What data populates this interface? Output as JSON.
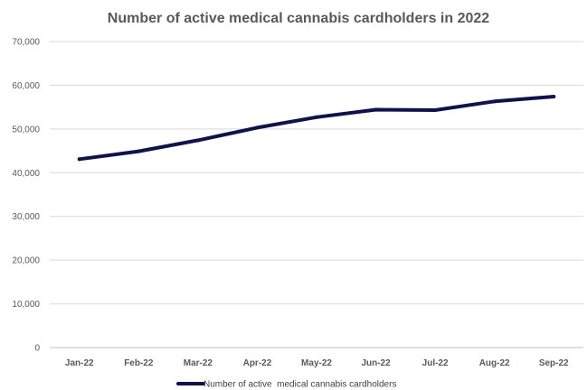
{
  "chart_data": {
    "type": "line",
    "title": "Number of active medical cannabis cardholders in 2022",
    "xlabel": "",
    "ylabel": "",
    "categories": [
      "Jan-22",
      "Feb-22",
      "Mar-22",
      "Apr-22",
      "May-22",
      "Jun-22",
      "Jul-22",
      "Aug-22",
      "Sep-22"
    ],
    "series": [
      {
        "name": "Number of active  medical cannabis cardholders",
        "values": [
          43100,
          44900,
          47400,
          50300,
          52700,
          54400,
          54300,
          56300,
          57400
        ],
        "color": "#12124a"
      }
    ],
    "ylim": [
      0,
      70000
    ],
    "yticks": [
      0,
      10000,
      20000,
      30000,
      40000,
      50000,
      60000,
      70000
    ],
    "ytick_labels": [
      "0",
      "10,000",
      "20,000",
      "30,000",
      "40,000",
      "50,000",
      "60,000",
      "70,000"
    ],
    "grid": true,
    "legend_position": "bottom"
  }
}
